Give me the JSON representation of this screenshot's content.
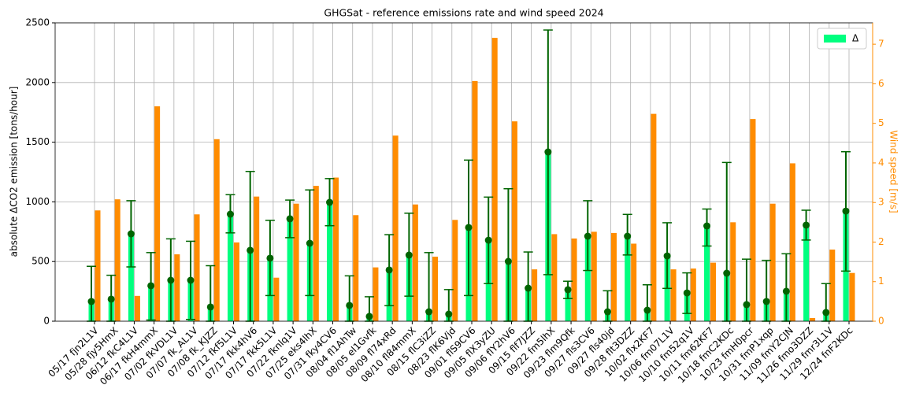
{
  "chart_data": {
    "type": "bar",
    "title": "GHGSat - reference emissions rate and wind speed 2024",
    "ylabel": "absolute ΔCO2 emission [tons/hour]",
    "y2label": "Wind speed [m/s]",
    "categories": [
      "05/17 fjn2L1V",
      "05/28 fjy5HmX",
      "06/12 fkC4L1V",
      "06/17 fkH4mmX",
      "07/02 fkVDL1V",
      "07/07 fk_AL1V",
      "07/08 fk_KJZZ",
      "07/12 fkf5L1V",
      "07/17 fkk4hV6",
      "07/17 fkk5L1V",
      "07/22 fknlq1V",
      "07/25 eks4lhX",
      "07/31 fky4CV6",
      "08/04 fl1AhTw",
      "08/05 el1Gvfk",
      "08/09 fl74xRd",
      "08/10 fl84mmX",
      "08/15 flC3iZZ",
      "08/23 flK6Vjd",
      "09/01 flS9CV6",
      "09/05 flX3yZU",
      "09/06 flY2hV6",
      "09/15 flf7JZZ",
      "09/22 fm5lhX",
      "09/23 flm9Qfk",
      "09/27 fls3CV6",
      "09/27 fls40jd",
      "09/28 flt3DZZ",
      "10/02 flx2KF7",
      "10/06 fm07L1V",
      "10/10 fm52q1V",
      "10/11 fm62KF7",
      "10/18 fmC2KDc",
      "10/23 fmH0pcr",
      "10/31 fmP1xqp",
      "11/09 fmY2CJN",
      "11/26 fmo3DZZ",
      "11/29 fmr3L1V",
      "12/24 fnF2KDc"
    ],
    "series": [
      {
        "name": "Δ",
        "color": "#00ff7f",
        "marker_color": "#006400",
        "values": [
          165,
          185,
          732,
          297,
          343,
          343,
          119,
          897,
          594,
          528,
          858,
          653,
          996,
          132,
          40,
          429,
          554,
          79,
          59,
          785,
          679,
          501,
          277,
          1418,
          264,
          712,
          79,
          712,
          92,
          547,
          237,
          798,
          402,
          139,
          165,
          251,
          805,
          73,
          923
        ],
        "error_low": [
          0,
          0,
          455,
          10,
          0,
          15,
          0,
          740,
          0,
          215,
          700,
          215,
          800,
          0,
          0,
          130,
          210,
          0,
          0,
          215,
          315,
          0,
          0,
          390,
          190,
          425,
          0,
          555,
          0,
          275,
          65,
          630,
          0,
          0,
          0,
          0,
          680,
          0,
          420
        ],
        "error_high": [
          460,
          385,
          1010,
          575,
          690,
          670,
          465,
          1060,
          1255,
          845,
          1015,
          1100,
          1195,
          380,
          205,
          725,
          905,
          575,
          265,
          1350,
          1040,
          1110,
          580,
          2440,
          335,
          1010,
          255,
          895,
          305,
          825,
          405,
          940,
          1330,
          520,
          510,
          565,
          930,
          315,
          1420
        ]
      },
      {
        "color": "#ff8c00",
        "axis": "y2",
        "values": [
          2.8,
          3.08,
          0.64,
          5.43,
          1.69,
          2.7,
          4.6,
          1.99,
          3.15,
          1.1,
          2.97,
          3.42,
          3.63,
          2.68,
          1.36,
          4.69,
          2.95,
          1.63,
          2.56,
          6.07,
          7.16,
          5.05,
          1.31,
          2.2,
          2.09,
          2.26,
          2.23,
          1.96,
          5.24,
          1.31,
          1.33,
          1.48,
          2.5,
          5.11,
          2.97,
          3.99,
          0.08,
          1.81,
          1.22
        ]
      }
    ],
    "ylim": [
      0,
      2500
    ],
    "yticks": [
      0,
      500,
      1000,
      1500,
      2000,
      2500
    ],
    "y2lim": [
      0,
      7.54
    ],
    "y2ticks": [
      0,
      1,
      2,
      3,
      4,
      5,
      6,
      7
    ],
    "y2color": "#ff8c00",
    "grid": true,
    "legend": "upper right"
  }
}
